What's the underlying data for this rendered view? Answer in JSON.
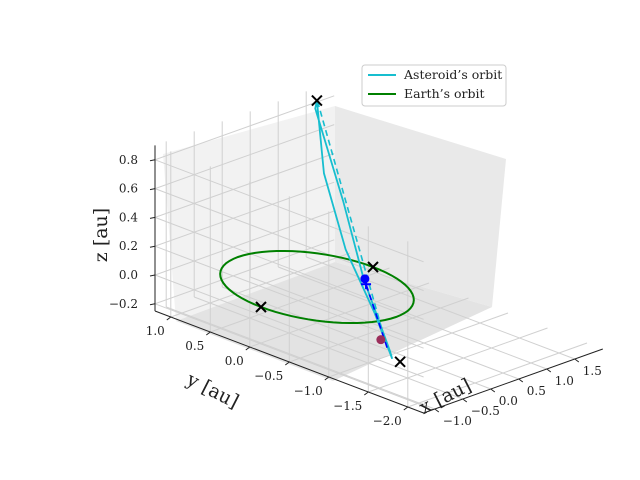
{
  "chart_data": {
    "type": "line",
    "projection": "3d",
    "xlabel": "x [au]",
    "ylabel": "y [au]",
    "zlabel": "z [au]",
    "x_ticks": [
      "−1.0",
      "−0.5",
      "0.0",
      "0.5",
      "1.0",
      "1.5"
    ],
    "y_ticks": [
      "1.0",
      "0.5",
      "0.0",
      "−0.5",
      "−1.0",
      "−1.5",
      "−2.0"
    ],
    "z_ticks": [
      "0.8",
      "0.6",
      "0.4",
      "0.2",
      "0.0",
      "−0.2"
    ],
    "xlim": [
      -1.2,
      2.0
    ],
    "ylim": [
      -2.2,
      1.2
    ],
    "zlim": [
      -0.25,
      0.9
    ],
    "grid": true,
    "legend": {
      "placement": "top-right",
      "entries": [
        {
          "label": "Asteroid’s orbit",
          "color": "#17becf"
        },
        {
          "label": "Earth’s orbit",
          "color": "#008000"
        }
      ]
    },
    "series": [
      {
        "name": "Asteroid’s orbit",
        "color": "#17becf",
        "style": "solid",
        "points": [
          [
            -0.35,
            -1.2,
            -0.2
          ],
          [
            -0.1,
            -0.8,
            0.0
          ],
          [
            0.3,
            -0.15,
            0.25
          ],
          [
            0.9,
            0.55,
            0.55
          ],
          [
            1.55,
            1.1,
            0.85
          ],
          [
            1.45,
            1.05,
            0.82
          ],
          [
            0.75,
            0.2,
            0.45
          ],
          [
            0.2,
            -0.45,
            0.12
          ],
          [
            -0.25,
            -1.1,
            -0.18
          ],
          [
            -0.35,
            -1.2,
            -0.2
          ]
        ]
      },
      {
        "name": "Earth’s orbit",
        "color": "#008000",
        "style": "solid",
        "circle": {
          "radius": 1.0,
          "z": 0.0
        }
      }
    ],
    "annotations": [
      {
        "kind": "dashed-line",
        "color": "#17becf",
        "from": [
          -0.3,
          -1.1,
          -0.15
        ],
        "to": [
          1.5,
          1.05,
          0.85
        ]
      },
      {
        "kind": "dashed-line",
        "color": "#0000ff",
        "from": [
          -0.3,
          -1.1,
          -0.15
        ],
        "to": [
          0.1,
          -0.55,
          0.12
        ]
      },
      {
        "kind": "marker",
        "symbol": "x",
        "color": "#000000",
        "at": [
          1.0,
          0.0,
          0.0
        ]
      },
      {
        "kind": "marker",
        "symbol": "x",
        "color": "#000000",
        "at": [
          -1.0,
          0.0,
          0.0
        ]
      },
      {
        "kind": "marker",
        "symbol": "x",
        "color": "#000000",
        "at": [
          -0.35,
          -1.3,
          -0.2
        ]
      },
      {
        "kind": "marker",
        "symbol": "x",
        "color": "#000000",
        "at": [
          1.55,
          1.1,
          0.85
        ]
      },
      {
        "kind": "marker",
        "symbol": "+",
        "color": "#0000ff",
        "at": [
          0.1,
          -0.55,
          0.12
        ]
      },
      {
        "kind": "marker",
        "symbol": "dot",
        "color": "#0000ff",
        "at": [
          0.15,
          -0.5,
          0.14
        ]
      },
      {
        "kind": "marker",
        "symbol": "dot",
        "color": "#9b2d5a",
        "at": [
          -0.2,
          -0.95,
          -0.14
        ]
      }
    ]
  }
}
